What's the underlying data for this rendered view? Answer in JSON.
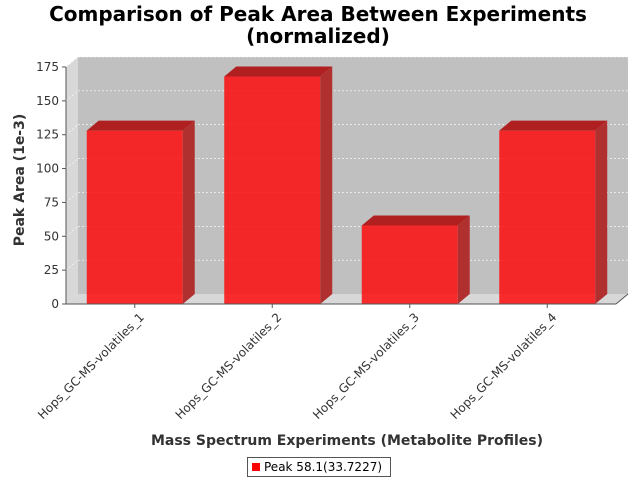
{
  "chart_data": {
    "type": "bar",
    "title_line1": "Comparison of Peak Area Between Experiments",
    "title_line2": "(normalized)",
    "xlabel": "Mass Spectrum Experiments (Metabolite Profiles)",
    "ylabel": "Peak Area (1e-3)",
    "categories": [
      "Hops_GC-MS-volatiles_1",
      "Hops_GC-MS-volatiles_2",
      "Hops_GC-MS-volatiles_3",
      "Hops_GC-MS-volatiles_4"
    ],
    "series": [
      {
        "name": "Peak 58.1(33.7227)",
        "values": [
          128,
          168,
          58,
          128
        ],
        "color": "#ff0000"
      }
    ],
    "yticks": [
      0,
      25,
      50,
      75,
      100,
      125,
      150,
      175
    ],
    "ylim": [
      0,
      175
    ],
    "grid": true,
    "legend_position": "bottom"
  }
}
